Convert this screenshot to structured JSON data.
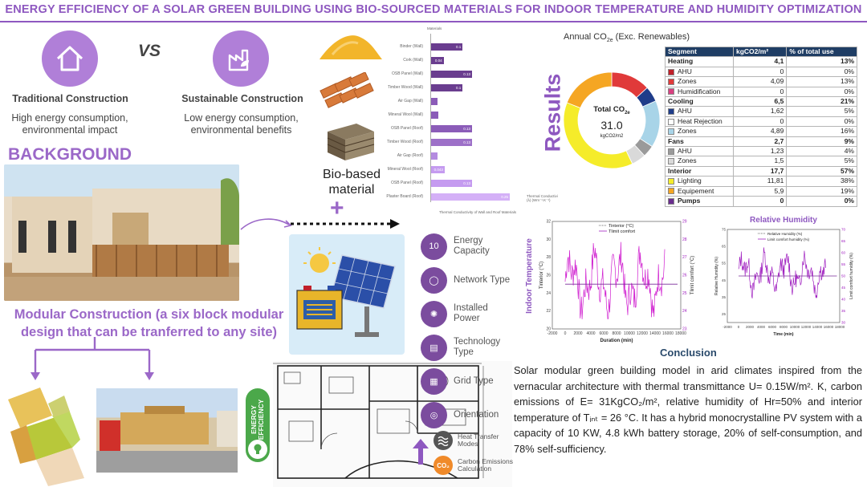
{
  "title": "ENERGY EFFICIENCY OF A SOLAR GREEN BUILDING USING BIO-SOURCED MATERIALS FOR INDOOR TEMPERATURE AND HUMIDITY OPTIMIZATION",
  "comparison": {
    "vs": "VS",
    "traditional": {
      "label": "Traditional Construction",
      "desc": "High energy consumption, environmental impact"
    },
    "sustainable": {
      "label": "Sustainable Construction",
      "desc": "Low energy consumption, environmental benefits"
    }
  },
  "background": "BACKGROUND",
  "modular": "Modular Construction (a six block modular design that can be tranferred to any site)",
  "biobased": "Bio-based material",
  "plus": "+",
  "materials_chart": {
    "chart_data": {
      "type": "bar",
      "orientation": "horizontal",
      "title": "Materials",
      "xlabel": "Thermal Conductivity of Wall and Roof Materials",
      "unit_label": "Thermal Conductivi (λ) (Wm⁻¹.K⁻¹)",
      "categories": [
        "Binder (Wall)",
        "Cork (Wall)",
        "OSB Panel (Wall)",
        "Timber Wood (Wall)",
        "Air Gap (Wall)",
        "Mineral Wool (Wall)",
        "OSB Panel (Roof)",
        "Timber Wood (Roof)",
        "Air Gap (Roof)",
        "Mineral Wool (Roof)",
        "OSB Panel (Roof)",
        "Plaster Board (Roof)"
      ],
      "values": [
        0.1,
        0.04,
        0.13,
        0.1,
        0.02,
        0.024,
        0.13,
        0.13,
        0.02,
        0.043,
        0.13,
        0.25
      ],
      "value_labels": [
        "0.1",
        "0.04",
        "0.13",
        "0.1",
        "",
        "",
        "0.13",
        "0.13",
        "",
        "0.043",
        "0.13",
        "0.25"
      ],
      "colors": [
        "#6a3d8f",
        "#6a3d8f",
        "#6a3d8f",
        "#6a3d8f",
        "#8b5cb8",
        "#8b5cb8",
        "#8b5cb8",
        "#9d70c8",
        "#b48be0",
        "#c59bf0",
        "#c59bf0",
        "#d4b0f7"
      ],
      "xlim": [
        0,
        0.26
      ]
    }
  },
  "results": "Results",
  "donut": {
    "title": "Annual CO",
    "title_sub": "2e",
    "title_tail": " (Exc. Renewables)",
    "center_title": "Total CO",
    "center_sub": "2e",
    "center_value": "31.0",
    "center_unit": "kgCO2/m2",
    "segments": [
      {
        "value": 4.09,
        "color": "#e03a3a"
      },
      {
        "value": 1.62,
        "color": "#1f3d8a"
      },
      {
        "value": 4.89,
        "color": "#a8d4e8"
      },
      {
        "value": 1.23,
        "color": "#9a9a9a"
      },
      {
        "value": 1.5,
        "color": "#d9d9d9"
      },
      {
        "value": 11.81,
        "color": "#f5ec2a"
      },
      {
        "value": 5.9,
        "color": "#f5a623"
      }
    ]
  },
  "co2_table": {
    "headers": [
      "Segment",
      "kgCO2/m²",
      "% of total use"
    ],
    "rows": [
      {
        "kind": "group",
        "label": "Heating",
        "value": "4,1",
        "pct": "13%"
      },
      {
        "kind": "sub",
        "label": "AHU",
        "value": "0",
        "pct": "0%",
        "color": "#c0202a"
      },
      {
        "kind": "sub",
        "label": "Zones",
        "value": "4,09",
        "pct": "13%",
        "color": "#e03a3a"
      },
      {
        "kind": "sub",
        "label": "Humidification",
        "value": "0",
        "pct": "0%",
        "color": "#d94080"
      },
      {
        "kind": "group",
        "label": "Cooling",
        "value": "6,5",
        "pct": "21%"
      },
      {
        "kind": "sub",
        "label": "AHU",
        "value": "1,62",
        "pct": "5%",
        "color": "#1f3d8a"
      },
      {
        "kind": "sub",
        "label": "Heat Rejection",
        "value": "0",
        "pct": "0%",
        "color": "#ffffff"
      },
      {
        "kind": "sub",
        "label": "Zones",
        "value": "4,89",
        "pct": "16%",
        "color": "#a8d4e8"
      },
      {
        "kind": "group",
        "label": "Fans",
        "value": "2,7",
        "pct": "9%"
      },
      {
        "kind": "sub",
        "label": "AHU",
        "value": "1,23",
        "pct": "4%",
        "color": "#9a9a9a"
      },
      {
        "kind": "sub",
        "label": "Zones",
        "value": "1,5",
        "pct": "5%",
        "color": "#d9d9d9"
      },
      {
        "kind": "group",
        "label": "Interior",
        "value": "17,7",
        "pct": "57%"
      },
      {
        "kind": "sub",
        "label": "Lighting",
        "value": "11,81",
        "pct": "38%",
        "color": "#f5ec2a"
      },
      {
        "kind": "sub",
        "label": "Equipement",
        "value": "5,9",
        "pct": "19%",
        "color": "#f5a623"
      },
      {
        "kind": "subbold",
        "label": "Pumps",
        "value": "0",
        "pct": "0%",
        "color": "#6a2d8f"
      }
    ]
  },
  "parameters": [
    {
      "label": "Energy Capacity",
      "icon": "10"
    },
    {
      "label": "Network Type",
      "icon": "◯"
    },
    {
      "label": "Installed Power",
      "icon": "✺"
    },
    {
      "label": "Technology Type",
      "icon": "▤"
    },
    {
      "label": "Grid Type",
      "icon": "▦"
    },
    {
      "label": "Orientation",
      "icon": "◎"
    }
  ],
  "extra_params": [
    {
      "label": "Heat Transfer Modes"
    },
    {
      "label": "Carbon Emissions Calculation"
    }
  ],
  "energy_badge": "ENERGY EFFICIENCY",
  "temp_chart": {
    "chart_data": {
      "type": "line",
      "ylabel_main": "Indoor Temperature",
      "ylabel": "Tinterior (°C)",
      "y2label": "Tlimit comfort (°C)",
      "xlabel": "Duration (min)",
      "legend": [
        "Tinterior (°C)",
        "Tlimit comfort"
      ],
      "xlim": [
        -2000,
        18000
      ],
      "ylim": [
        20,
        32
      ],
      "y2lim": [
        23,
        29
      ],
      "xticks": [
        "-2000",
        "0",
        "2000",
        "4000",
        "6000",
        "8000",
        "10000",
        "12000",
        "14000",
        "16000",
        "18000"
      ],
      "yticks": [
        "20",
        "22",
        "24",
        "26",
        "28",
        "30",
        "32"
      ],
      "y2ticks": [
        "23",
        "24",
        "25",
        "26",
        "27",
        "28",
        "29"
      ],
      "comfort_level": 25.5
    }
  },
  "hum_chart": {
    "chart_data": {
      "type": "line",
      "title": "Relative Humidity",
      "ylabel": "Relative Humidity (%)",
      "y2label": "Limit comfort humidity (%)",
      "xlabel": "Time (min)",
      "legend": [
        "Relative Humidity (%)",
        "Limit comfort humidity (%)"
      ],
      "xlim": [
        -2000,
        18000
      ],
      "ylim": [
        20,
        75
      ],
      "y2lim": [
        30,
        70
      ],
      "xticks": [
        "-2000",
        "0",
        "2000",
        "4000",
        "6000",
        "8000",
        "10000",
        "12000",
        "14000",
        "16000",
        "18000"
      ],
      "yticks": [
        "25",
        "35",
        "45",
        "55",
        "65",
        "75"
      ],
      "y2ticks": [
        "30",
        "35",
        "40",
        "45",
        "50",
        "55",
        "60",
        "65",
        "70"
      ],
      "comfort_level": 50
    }
  },
  "conclusion": {
    "heading": "Conclusion",
    "text": "Solar modular green building model in arid climates inspired from the vernacular architecture with thermal transmittance U= 0.15W/m². K, carbon emissions of E= 31KgCO₂/m², relative humidity of Hr=50% and interior temperature of Tᵢₙₜ = 26 °C. It has a hybrid monocrystalline PV system with a capacity of 10 KW, 4.8 kWh battery storage, 20% of self-consumption, and 78% self-sufficiency."
  }
}
